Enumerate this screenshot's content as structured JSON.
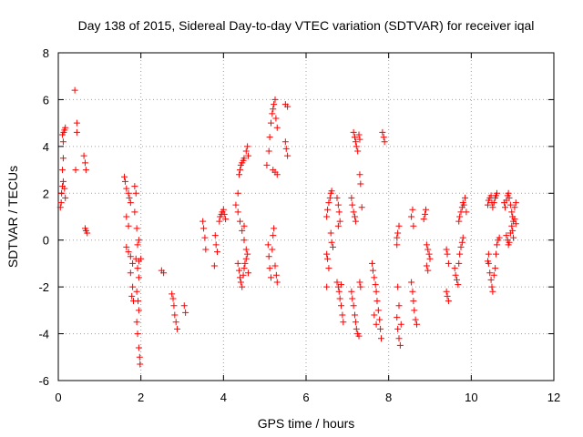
{
  "chart_data": {
    "type": "scatter",
    "title": "Day 138 of 2015, Sidereal Day-to-day VTEC variation (SDTVAR) for receiver iqal",
    "xlabel": "GPS time / hours",
    "ylabel": "SDTVAR / TECUs",
    "xlim": [
      0,
      12
    ],
    "ylim": [
      -6,
      8
    ],
    "xticks": [
      "0",
      "2",
      "4",
      "6",
      "8",
      "10",
      "12"
    ],
    "yticks": [
      "-6",
      "-4",
      "-2",
      "0",
      "2",
      "4",
      "6",
      "8"
    ],
    "grid": true,
    "marker": "+",
    "color": "#ff0000",
    "series": [
      {
        "name": "SDTVAR",
        "points": [
          [
            0.05,
            1.4
          ],
          [
            0.07,
            1.6
          ],
          [
            0.08,
            2.0
          ],
          [
            0.1,
            2.3
          ],
          [
            0.12,
            2.5
          ],
          [
            0.1,
            3.0
          ],
          [
            0.12,
            3.5
          ],
          [
            0.1,
            4.5
          ],
          [
            0.13,
            4.6
          ],
          [
            0.15,
            4.7
          ],
          [
            0.17,
            4.8
          ],
          [
            0.12,
            4.2
          ],
          [
            0.15,
            2.2
          ],
          [
            0.17,
            1.8
          ],
          [
            0.4,
            6.4
          ],
          [
            0.45,
            5.0
          ],
          [
            0.45,
            4.6
          ],
          [
            0.42,
            3.0
          ],
          [
            0.62,
            3.6
          ],
          [
            0.65,
            3.3
          ],
          [
            0.67,
            3.0
          ],
          [
            0.65,
            0.5
          ],
          [
            0.67,
            0.4
          ],
          [
            0.7,
            0.3
          ],
          [
            1.6,
            2.7
          ],
          [
            1.62,
            2.5
          ],
          [
            1.65,
            2.2
          ],
          [
            1.7,
            2.0
          ],
          [
            1.72,
            1.8
          ],
          [
            1.75,
            1.6
          ],
          [
            1.65,
            1.0
          ],
          [
            1.7,
            0.6
          ],
          [
            1.65,
            -0.3
          ],
          [
            1.7,
            -0.5
          ],
          [
            1.75,
            -0.7
          ],
          [
            1.8,
            -1.0
          ],
          [
            1.75,
            -1.4
          ],
          [
            1.8,
            -2.0
          ],
          [
            1.78,
            -2.4
          ],
          [
            1.82,
            -2.6
          ],
          [
            1.85,
            2.3
          ],
          [
            1.88,
            2.0
          ],
          [
            1.85,
            1.2
          ],
          [
            1.9,
            0.5
          ],
          [
            1.92,
            -0.2
          ],
          [
            1.88,
            -0.8
          ],
          [
            1.92,
            -1.2
          ],
          [
            1.95,
            -1.6
          ],
          [
            1.9,
            -2.2
          ],
          [
            1.93,
            -2.6
          ],
          [
            1.95,
            -3.0
          ],
          [
            1.9,
            -3.5
          ],
          [
            1.92,
            -4.0
          ],
          [
            1.95,
            -4.6
          ],
          [
            1.97,
            -5.0
          ],
          [
            1.98,
            -5.3
          ],
          [
            1.95,
            -0.9
          ],
          [
            2.0,
            -0.8
          ],
          [
            1.95,
            0.0
          ],
          [
            2.5,
            -1.3
          ],
          [
            2.55,
            -1.4
          ],
          [
            2.75,
            -2.3
          ],
          [
            2.78,
            -2.5
          ],
          [
            2.8,
            -2.8
          ],
          [
            2.82,
            -3.2
          ],
          [
            2.85,
            -3.5
          ],
          [
            2.88,
            -3.8
          ],
          [
            3.05,
            -2.8
          ],
          [
            3.08,
            -3.1
          ],
          [
            3.5,
            0.8
          ],
          [
            3.52,
            0.5
          ],
          [
            3.55,
            0.1
          ],
          [
            3.57,
            -0.4
          ],
          [
            3.8,
            0.2
          ],
          [
            3.82,
            -0.2
          ],
          [
            3.78,
            -1.1
          ],
          [
            3.85,
            -0.5
          ],
          [
            3.9,
            0.8
          ],
          [
            3.92,
            1.0
          ],
          [
            3.95,
            1.1
          ],
          [
            3.97,
            1.2
          ],
          [
            4.0,
            1.3
          ],
          [
            4.02,
            1.1
          ],
          [
            4.05,
            0.9
          ],
          [
            4.3,
            1.5
          ],
          [
            4.35,
            2.0
          ],
          [
            4.38,
            2.8
          ],
          [
            4.4,
            3.0
          ],
          [
            4.42,
            3.2
          ],
          [
            4.45,
            3.3
          ],
          [
            4.48,
            3.4
          ],
          [
            4.5,
            3.5
          ],
          [
            4.55,
            3.8
          ],
          [
            4.58,
            4.0
          ],
          [
            4.6,
            3.6
          ],
          [
            4.35,
            1.2
          ],
          [
            4.4,
            0.8
          ],
          [
            4.45,
            0.4
          ],
          [
            4.5,
            0.0
          ],
          [
            4.55,
            -0.4
          ],
          [
            4.35,
            -1.0
          ],
          [
            4.38,
            -1.3
          ],
          [
            4.4,
            -1.6
          ],
          [
            4.42,
            -1.8
          ],
          [
            4.45,
            -2.0
          ],
          [
            4.48,
            -1.5
          ],
          [
            4.5,
            -1.2
          ],
          [
            4.52,
            -1.0
          ],
          [
            4.55,
            -0.8
          ],
          [
            4.58,
            -0.6
          ],
          [
            4.6,
            -1.4
          ],
          [
            4.5,
            0.6
          ],
          [
            5.05,
            3.2
          ],
          [
            5.1,
            3.8
          ],
          [
            5.12,
            4.4
          ],
          [
            5.15,
            5.0
          ],
          [
            5.18,
            5.4
          ],
          [
            5.2,
            5.6
          ],
          [
            5.22,
            5.8
          ],
          [
            5.25,
            6.0
          ],
          [
            5.27,
            5.2
          ],
          [
            5.3,
            4.8
          ],
          [
            5.2,
            3.0
          ],
          [
            5.25,
            2.9
          ],
          [
            5.3,
            2.8
          ],
          [
            5.08,
            -0.2
          ],
          [
            5.1,
            -0.7
          ],
          [
            5.12,
            -1.2
          ],
          [
            5.15,
            -1.6
          ],
          [
            5.18,
            -0.4
          ],
          [
            5.2,
            0.2
          ],
          [
            5.22,
            0.5
          ],
          [
            5.25,
            -1.1
          ],
          [
            5.28,
            -1.5
          ],
          [
            5.3,
            -1.8
          ],
          [
            5.5,
            5.8
          ],
          [
            5.55,
            5.7
          ],
          [
            5.5,
            4.2
          ],
          [
            5.52,
            3.9
          ],
          [
            5.55,
            3.6
          ],
          [
            6.5,
            1.0
          ],
          [
            6.52,
            1.3
          ],
          [
            6.55,
            1.6
          ],
          [
            6.58,
            1.8
          ],
          [
            6.6,
            2.0
          ],
          [
            6.62,
            2.1
          ],
          [
            6.5,
            -0.6
          ],
          [
            6.52,
            -0.8
          ],
          [
            6.55,
            -1.2
          ],
          [
            6.5,
            -2.0
          ],
          [
            6.6,
            0.3
          ],
          [
            6.62,
            -0.1
          ],
          [
            6.65,
            -0.3
          ],
          [
            6.75,
            1.8
          ],
          [
            6.78,
            1.5
          ],
          [
            6.8,
            1.2
          ],
          [
            6.82,
            0.8
          ],
          [
            6.78,
            0.6
          ],
          [
            6.75,
            -1.8
          ],
          [
            6.78,
            -2.0
          ],
          [
            6.8,
            -2.2
          ],
          [
            6.82,
            -2.5
          ],
          [
            6.85,
            -2.8
          ],
          [
            6.88,
            -3.2
          ],
          [
            6.9,
            -3.5
          ],
          [
            6.85,
            -1.9
          ],
          [
            7.1,
            1.8
          ],
          [
            7.12,
            1.5
          ],
          [
            7.15,
            1.2
          ],
          [
            7.18,
            1.0
          ],
          [
            7.2,
            0.8
          ],
          [
            7.15,
            4.6
          ],
          [
            7.18,
            4.4
          ],
          [
            7.2,
            4.2
          ],
          [
            7.22,
            4.0
          ],
          [
            7.25,
            3.8
          ],
          [
            7.28,
            4.5
          ],
          [
            7.3,
            4.3
          ],
          [
            7.1,
            -2.2
          ],
          [
            7.12,
            -2.5
          ],
          [
            7.15,
            -2.8
          ],
          [
            7.18,
            -3.2
          ],
          [
            7.2,
            -3.5
          ],
          [
            7.22,
            -3.8
          ],
          [
            7.25,
            -4.0
          ],
          [
            7.28,
            -4.1
          ],
          [
            7.3,
            -1.8
          ],
          [
            7.32,
            -2.0
          ],
          [
            7.3,
            2.8
          ],
          [
            7.32,
            2.4
          ],
          [
            7.35,
            1.4
          ],
          [
            7.6,
            -1.0
          ],
          [
            7.62,
            -1.3
          ],
          [
            7.65,
            -1.6
          ],
          [
            7.68,
            -1.9
          ],
          [
            7.7,
            -2.2
          ],
          [
            7.72,
            -2.6
          ],
          [
            7.75,
            -3.0
          ],
          [
            7.78,
            -3.4
          ],
          [
            7.8,
            -3.8
          ],
          [
            7.82,
            -4.2
          ],
          [
            7.65,
            -3.2
          ],
          [
            7.7,
            -3.6
          ],
          [
            7.85,
            4.6
          ],
          [
            7.88,
            4.4
          ],
          [
            7.9,
            4.2
          ],
          [
            8.2,
            0.1
          ],
          [
            8.22,
            0.3
          ],
          [
            8.25,
            0.6
          ],
          [
            8.2,
            -0.2
          ],
          [
            8.22,
            -2.0
          ],
          [
            8.25,
            -2.8
          ],
          [
            8.2,
            -3.3
          ],
          [
            8.22,
            -3.8
          ],
          [
            8.25,
            -4.2
          ],
          [
            8.28,
            -4.5
          ],
          [
            8.3,
            -3.6
          ],
          [
            8.55,
            1.0
          ],
          [
            8.58,
            1.3
          ],
          [
            8.6,
            0.6
          ],
          [
            8.55,
            -1.8
          ],
          [
            8.58,
            -2.2
          ],
          [
            8.6,
            -2.6
          ],
          [
            8.62,
            -3.0
          ],
          [
            8.65,
            -3.4
          ],
          [
            8.68,
            -3.6
          ],
          [
            8.85,
            0.9
          ],
          [
            8.88,
            1.1
          ],
          [
            8.9,
            1.3
          ],
          [
            8.92,
            -0.2
          ],
          [
            8.95,
            -0.4
          ],
          [
            8.98,
            -0.6
          ],
          [
            9.0,
            -0.8
          ],
          [
            8.92,
            -1.1
          ],
          [
            8.95,
            -1.3
          ],
          [
            9.4,
            -0.4
          ],
          [
            9.42,
            -0.6
          ],
          [
            9.45,
            -1.0
          ],
          [
            9.4,
            -2.2
          ],
          [
            9.42,
            -2.4
          ],
          [
            9.45,
            -2.6
          ],
          [
            9.6,
            -1.2
          ],
          [
            9.62,
            -1.5
          ],
          [
            9.65,
            -1.7
          ],
          [
            9.68,
            -1.9
          ],
          [
            9.7,
            -1.0
          ],
          [
            9.72,
            -0.6
          ],
          [
            9.75,
            -0.3
          ],
          [
            9.78,
            -0.1
          ],
          [
            9.8,
            0.1
          ],
          [
            9.7,
            0.8
          ],
          [
            9.72,
            1.0
          ],
          [
            9.75,
            1.2
          ],
          [
            9.78,
            1.4
          ],
          [
            9.8,
            1.6
          ],
          [
            9.85,
            1.8
          ],
          [
            9.82,
            1.5
          ],
          [
            9.88,
            1.2
          ],
          [
            10.4,
            1.5
          ],
          [
            10.42,
            1.7
          ],
          [
            10.45,
            1.8
          ],
          [
            10.48,
            1.9
          ],
          [
            10.5,
            1.6
          ],
          [
            10.52,
            1.4
          ],
          [
            10.55,
            1.6
          ],
          [
            10.58,
            1.8
          ],
          [
            10.6,
            1.9
          ],
          [
            10.62,
            2.0
          ],
          [
            10.42,
            -1.0
          ],
          [
            10.45,
            -1.4
          ],
          [
            10.48,
            -1.7
          ],
          [
            10.5,
            -2.0
          ],
          [
            10.52,
            -2.2
          ],
          [
            10.55,
            -1.5
          ],
          [
            10.58,
            -1.2
          ],
          [
            10.6,
            -0.6
          ],
          [
            10.62,
            -0.2
          ],
          [
            10.65,
            0.0
          ],
          [
            10.68,
            0.1
          ],
          [
            10.4,
            -0.9
          ],
          [
            10.42,
            -0.6
          ],
          [
            10.8,
            1.6
          ],
          [
            10.82,
            1.4
          ],
          [
            10.85,
            1.7
          ],
          [
            10.88,
            1.9
          ],
          [
            10.9,
            2.0
          ],
          [
            10.92,
            1.8
          ],
          [
            10.95,
            1.5
          ],
          [
            10.98,
            1.2
          ],
          [
            11.0,
            1.0
          ],
          [
            11.02,
            0.8
          ],
          [
            11.05,
            1.4
          ],
          [
            11.08,
            1.6
          ],
          [
            10.85,
            0.2
          ],
          [
            10.88,
            0.0
          ],
          [
            10.9,
            -0.2
          ],
          [
            10.92,
            -0.1
          ],
          [
            10.95,
            0.3
          ],
          [
            10.98,
            0.6
          ],
          [
            11.0,
            0.4
          ],
          [
            11.02,
            0.1
          ],
          [
            11.05,
            0.9
          ],
          [
            11.08,
            0.7
          ]
        ]
      }
    ]
  }
}
